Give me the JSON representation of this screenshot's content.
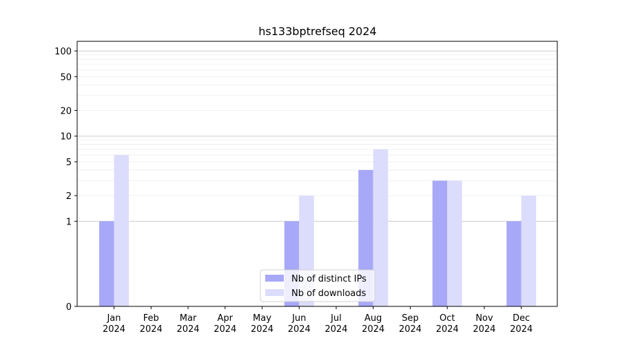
{
  "chart_data": {
    "type": "bar",
    "title": "hs133bptrefseq 2024",
    "xlabel": "",
    "ylabel": "",
    "y_scale": "symlog",
    "ylim": [
      0,
      130
    ],
    "y_ticks": [
      0,
      1,
      2,
      5,
      10,
      20,
      50,
      100
    ],
    "grid": "y-major-and-minor",
    "legend_position": "lower-center",
    "categories": [
      [
        "Jan",
        "2024"
      ],
      [
        "Feb",
        "2024"
      ],
      [
        "Mar",
        "2024"
      ],
      [
        "Apr",
        "2024"
      ],
      [
        "May",
        "2024"
      ],
      [
        "Jun",
        "2024"
      ],
      [
        "Jul",
        "2024"
      ],
      [
        "Aug",
        "2024"
      ],
      [
        "Sep",
        "2024"
      ],
      [
        "Oct",
        "2024"
      ],
      [
        "Nov",
        "2024"
      ],
      [
        "Dec",
        "2024"
      ]
    ],
    "series": [
      {
        "name": "Nb of distinct IPs",
        "color": "#a8a8f8",
        "values": [
          1,
          0,
          0,
          0,
          0,
          1,
          0,
          4,
          0,
          3,
          0,
          1
        ]
      },
      {
        "name": "Nb of downloads",
        "color": "#dcdcfc",
        "values": [
          6,
          0,
          0,
          0,
          0,
          2,
          0,
          7,
          0,
          3,
          0,
          2
        ]
      }
    ]
  }
}
